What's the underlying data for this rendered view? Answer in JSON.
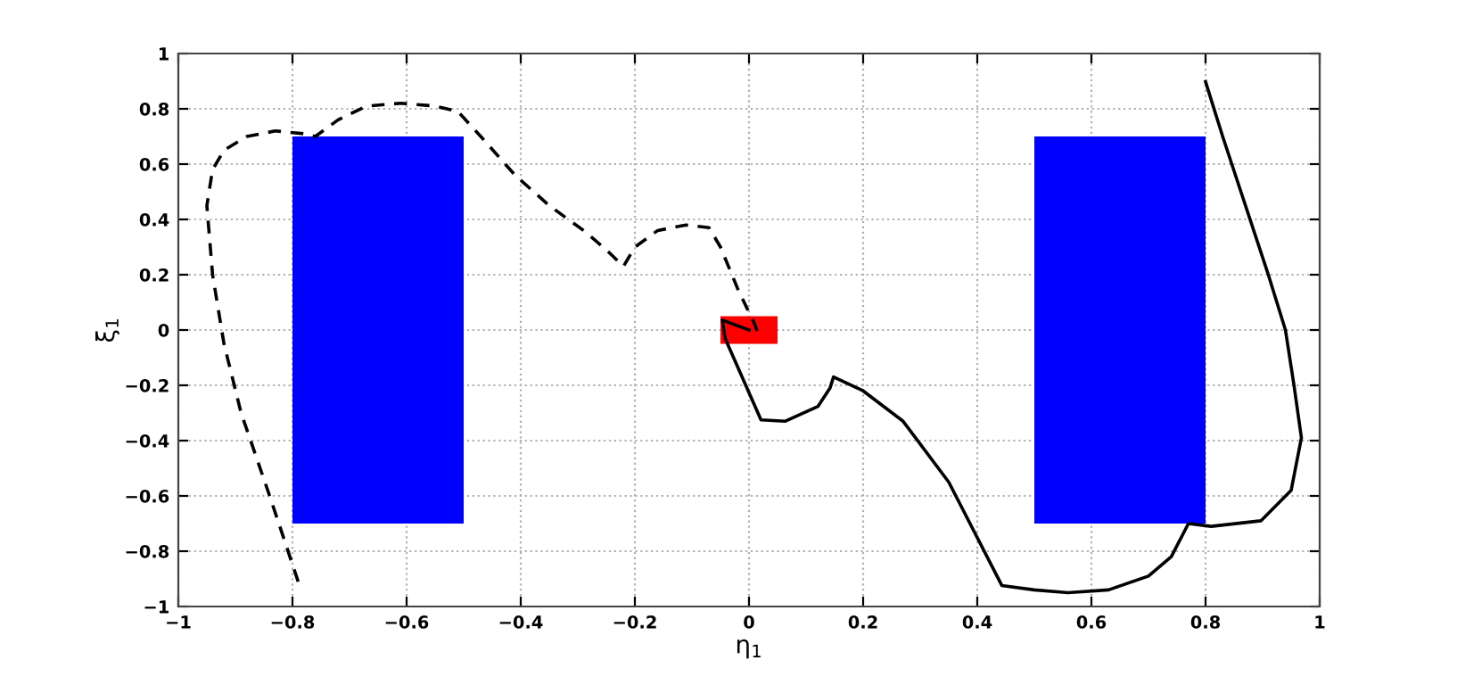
{
  "chart_data": {
    "type": "line",
    "xlabel": "η$_{1}$",
    "ylabel": "ξ$_{1}$",
    "xlim": [
      -1,
      1
    ],
    "ylim": [
      -1,
      1
    ],
    "xticks": [
      {
        "value": -1,
        "label": "−1"
      },
      {
        "value": -0.8,
        "label": "−0.8"
      },
      {
        "value": -0.6,
        "label": "−0.6"
      },
      {
        "value": -0.4,
        "label": "−0.4"
      },
      {
        "value": -0.2,
        "label": "−0.2"
      },
      0,
      0.2,
      0.4,
      0.6,
      0.8,
      1
    ],
    "yticks": [
      {
        "value": -1,
        "label": "−1"
      },
      {
        "value": -0.8,
        "label": "−0.8"
      },
      {
        "value": -0.6,
        "label": "−0.6"
      },
      {
        "value": -0.4,
        "label": "−0.4"
      },
      {
        "value": -0.2,
        "label": "−0.2"
      },
      0,
      0.2,
      0.4,
      0.6,
      0.8,
      1
    ],
    "grid": true,
    "series": [
      {
        "type": "area",
        "color": "#0000ff",
        "x": [
          -0.8,
          -0.8,
          -0.5,
          -0.5
        ],
        "values": [
          -0.7,
          0.7,
          0.7,
          -0.7
        ]
      },
      {
        "type": "area",
        "color": "#0000ff",
        "x": [
          0.5,
          0.5,
          0.8,
          0.8
        ],
        "values": [
          -0.7,
          0.7,
          0.7,
          -0.7
        ]
      },
      {
        "type": "area",
        "color": "#ff0000",
        "x": [
          -0.05,
          -0.05,
          0.05,
          0.05
        ],
        "values": [
          -0.05,
          0.05,
          0.05,
          -0.05
        ]
      },
      {
        "color": "#000000",
        "line_style": "dashed",
        "x": [
          -0.79,
          -0.84,
          -0.89,
          -0.92,
          -0.94,
          -0.95,
          -0.94,
          -0.92,
          -0.88,
          -0.83,
          -0.78,
          -0.76,
          -0.72,
          -0.67,
          -0.61,
          -0.55,
          -0.51,
          -0.47,
          -0.41,
          -0.35,
          -0.29,
          -0.25,
          -0.22,
          -0.2,
          -0.16,
          -0.11,
          -0.07,
          -0.05,
          -0.02,
          0.01,
          0.015,
          0.0
        ],
        "values": [
          -0.91,
          -0.6,
          -0.3,
          -0.05,
          0.2,
          0.45,
          0.58,
          0.65,
          0.7,
          0.72,
          0.71,
          0.7,
          0.76,
          0.81,
          0.82,
          0.81,
          0.79,
          0.7,
          0.56,
          0.45,
          0.36,
          0.29,
          0.23,
          0.3,
          0.36,
          0.38,
          0.37,
          0.3,
          0.15,
          0.02,
          -0.01,
          0.0
        ]
      },
      {
        "color": "#000000",
        "line_style": "solid",
        "x": [
          0.0,
          -0.047,
          -0.042,
          0.021,
          0.063,
          0.121,
          0.142,
          0.148,
          0.2,
          0.27,
          0.35,
          0.443,
          0.5,
          0.559,
          0.63,
          0.7,
          0.74,
          0.77,
          0.81,
          0.897,
          0.95,
          0.968,
          0.955,
          0.94,
          0.91,
          0.87,
          0.83,
          0.8
        ],
        "values": [
          0.0,
          0.036,
          -0.03,
          -0.325,
          -0.33,
          -0.276,
          -0.21,
          -0.17,
          -0.22,
          -0.33,
          -0.55,
          -0.924,
          -0.94,
          -0.95,
          -0.94,
          -0.89,
          -0.82,
          -0.7,
          -0.71,
          -0.69,
          -0.58,
          -0.39,
          -0.2,
          0.0,
          0.2,
          0.45,
          0.7,
          0.898
        ]
      }
    ]
  }
}
